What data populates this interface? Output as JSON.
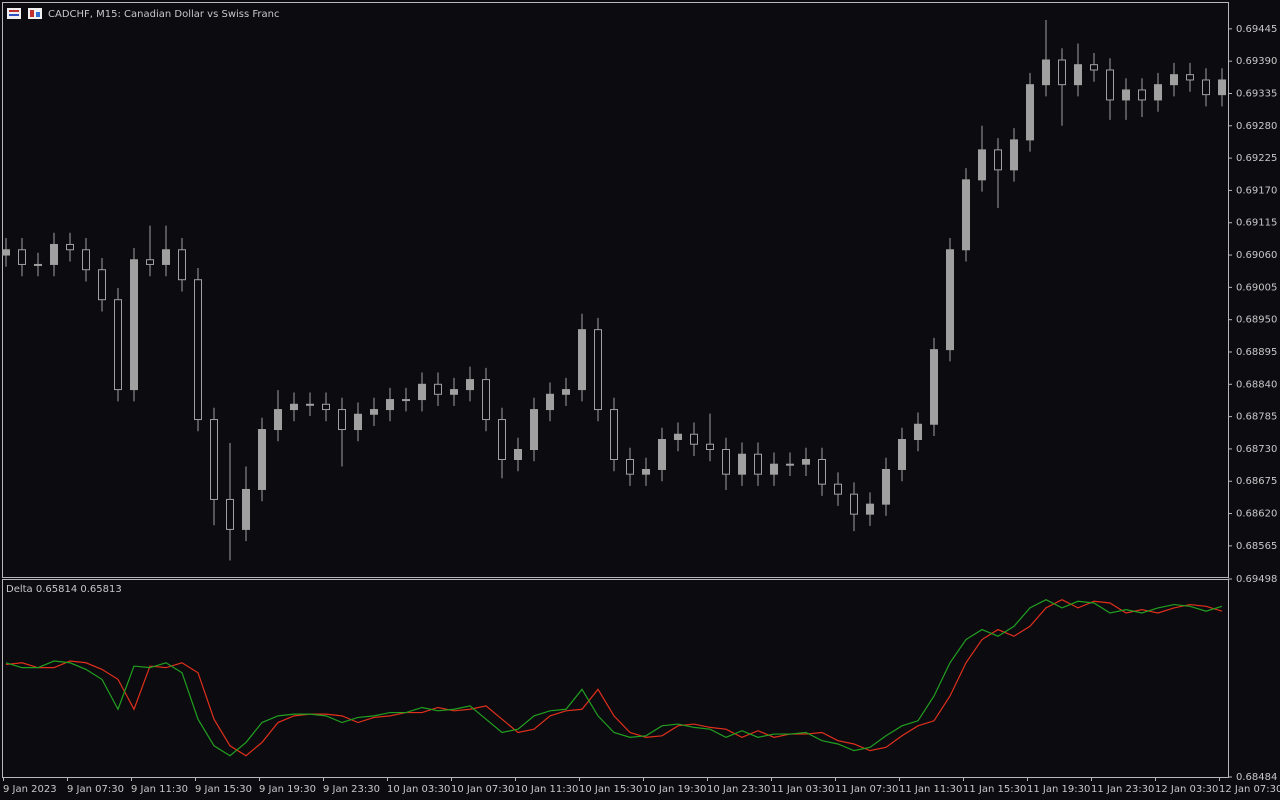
{
  "chart_data": [
    {
      "type": "candlestick",
      "title": "CADCHF, M15:  Canadian Dollar vs Swiss Franc",
      "color": "#a0a0a0",
      "open": [
        0.6906,
        0.69069,
        0.69044,
        0.69044,
        0.69078,
        0.69069,
        0.69035,
        0.68984,
        0.68831,
        0.69052,
        0.69044,
        0.69069,
        0.69018,
        0.6878,
        0.68644,
        0.68593,
        0.68661,
        0.68763,
        0.68797,
        0.68806,
        0.68806,
        0.68797,
        0.68763,
        0.68789,
        0.68797,
        0.68814,
        0.68814,
        0.6884,
        0.68823,
        0.68831,
        0.68848,
        0.6878,
        0.68712,
        0.68729,
        0.68797,
        0.68823,
        0.68831,
        0.68933,
        0.68797,
        0.68712,
        0.68687,
        0.68695,
        0.68746,
        0.68755,
        0.68738,
        0.68729,
        0.68687,
        0.68721,
        0.68687,
        0.68704,
        0.68704,
        0.68712,
        0.6867,
        0.68653,
        0.68619,
        0.68636,
        0.68695,
        0.68746,
        0.68772,
        0.68899,
        0.69069,
        0.69188,
        0.69239,
        0.69205,
        0.69256,
        0.6935,
        0.69392,
        0.6935,
        0.69384,
        0.69375,
        0.69324,
        0.69341,
        0.69324,
        0.6935,
        0.69367,
        0.69358,
        0.69333
      ],
      "high": [
        0.69089,
        0.69089,
        0.69064,
        0.69098,
        0.69098,
        0.69089,
        0.69055,
        0.69004,
        0.69072,
        0.6911,
        0.6911,
        0.69089,
        0.69038,
        0.688,
        0.6874,
        0.687,
        0.68783,
        0.6883,
        0.68826,
        0.68826,
        0.68826,
        0.68817,
        0.68809,
        0.68817,
        0.68834,
        0.68834,
        0.6886,
        0.6886,
        0.68851,
        0.6887,
        0.68868,
        0.688,
        0.68749,
        0.68817,
        0.68843,
        0.68851,
        0.6896,
        0.68953,
        0.68817,
        0.68732,
        0.68715,
        0.68766,
        0.68775,
        0.68775,
        0.6879,
        0.68749,
        0.68741,
        0.68741,
        0.68724,
        0.68724,
        0.68732,
        0.68732,
        0.6869,
        0.68673,
        0.68656,
        0.68715,
        0.68766,
        0.68792,
        0.68919,
        0.69089,
        0.69208,
        0.6928,
        0.69259,
        0.69276,
        0.6937,
        0.6946,
        0.69412,
        0.6942,
        0.69404,
        0.69395,
        0.69361,
        0.69361,
        0.6937,
        0.69387,
        0.69387,
        0.69378,
        0.69378
      ],
      "low": [
        0.6904,
        0.69024,
        0.69024,
        0.69024,
        0.69049,
        0.69015,
        0.68964,
        0.68811,
        0.68811,
        0.69024,
        0.69024,
        0.68998,
        0.6876,
        0.686,
        0.6854,
        0.68573,
        0.68641,
        0.68743,
        0.68777,
        0.68786,
        0.68777,
        0.687,
        0.68743,
        0.68769,
        0.68777,
        0.68794,
        0.68794,
        0.68803,
        0.68803,
        0.68811,
        0.6876,
        0.6868,
        0.68692,
        0.68709,
        0.68777,
        0.68803,
        0.68811,
        0.68777,
        0.68692,
        0.68667,
        0.68667,
        0.68675,
        0.68726,
        0.68718,
        0.68709,
        0.6866,
        0.68667,
        0.68667,
        0.68667,
        0.68684,
        0.68684,
        0.6865,
        0.68633,
        0.6859,
        0.68599,
        0.68616,
        0.68675,
        0.68726,
        0.68752,
        0.68879,
        0.69049,
        0.69168,
        0.6914,
        0.69185,
        0.69236,
        0.6933,
        0.6928,
        0.6933,
        0.69355,
        0.6929,
        0.6929,
        0.69295,
        0.69304,
        0.6933,
        0.69338,
        0.69313,
        0.69313
      ],
      "close": [
        0.69069,
        0.69044,
        0.69044,
        0.69078,
        0.69069,
        0.69035,
        0.68984,
        0.68831,
        0.69052,
        0.69044,
        0.69069,
        0.69018,
        0.6878,
        0.68644,
        0.68593,
        0.68661,
        0.68763,
        0.68797,
        0.68806,
        0.68806,
        0.68797,
        0.68763,
        0.68789,
        0.68797,
        0.68814,
        0.68814,
        0.6884,
        0.68823,
        0.68831,
        0.68848,
        0.6878,
        0.68712,
        0.68729,
        0.68797,
        0.68823,
        0.68831,
        0.68933,
        0.68797,
        0.68712,
        0.68687,
        0.68695,
        0.68746,
        0.68755,
        0.68738,
        0.68729,
        0.68687,
        0.68721,
        0.68687,
        0.68704,
        0.68704,
        0.68712,
        0.6867,
        0.68653,
        0.68619,
        0.68636,
        0.68695,
        0.68746,
        0.68772,
        0.68899,
        0.69069,
        0.69188,
        0.69239,
        0.69205,
        0.69256,
        0.6935,
        0.69392,
        0.6935,
        0.69384,
        0.69375,
        0.69324,
        0.69341,
        0.69324,
        0.6935,
        0.69367,
        0.69358,
        0.69333,
        0.69358
      ],
      "ylim": [
        0.68512,
        0.69489
      ],
      "yticks": [
        0.69445,
        {
          "value": 0.6939,
          "label": "0.69390"
        },
        0.69335,
        {
          "value": 0.6928,
          "label": "0.69280"
        },
        0.69225,
        {
          "value": 0.6917,
          "label": "0.69170"
        },
        0.69115,
        {
          "value": 0.6906,
          "label": "0.69060"
        },
        0.69005,
        {
          "value": 0.6895,
          "label": "0.68950"
        },
        0.68895,
        {
          "value": 0.6884,
          "label": "0.68840"
        },
        0.68785,
        {
          "value": 0.6873,
          "label": "0.68730"
        },
        0.68675,
        {
          "value": 0.6862,
          "label": "0.68620"
        },
        0.68565
      ]
    },
    {
      "type": "line",
      "title": "Delta 0.65814 0.65813",
      "series": [
        {
          "color": "#e0301c",
          "values": [
            0.6906,
            0.69069,
            0.69044,
            0.69044,
            0.69078,
            0.69069,
            0.69035,
            0.68984,
            0.68831,
            0.69052,
            0.69044,
            0.69069,
            0.69018,
            0.6878,
            0.68644,
            0.68593,
            0.68661,
            0.68763,
            0.68797,
            0.68806,
            0.68806,
            0.68797,
            0.68763,
            0.68789,
            0.68797,
            0.68814,
            0.68814,
            0.6884,
            0.68823,
            0.68831,
            0.68848,
            0.6878,
            0.68712,
            0.68729,
            0.68797,
            0.68823,
            0.68831,
            0.68933,
            0.68797,
            0.68712,
            0.68687,
            0.68695,
            0.68746,
            0.68755,
            0.68738,
            0.68729,
            0.68687,
            0.68721,
            0.68687,
            0.68704,
            0.68704,
            0.68712,
            0.6867,
            0.68653,
            0.68619,
            0.68636,
            0.68695,
            0.68746,
            0.68772,
            0.68899,
            0.69069,
            0.69188,
            0.69239,
            0.69205,
            0.69256,
            0.6935,
            0.69392,
            0.6935,
            0.69384,
            0.69375,
            0.69324,
            0.69341,
            0.69324,
            0.6935,
            0.69367,
            0.69358,
            0.69333
          ]
        },
        {
          "color": "#22a020",
          "values": [
            0.69069,
            0.69044,
            0.69044,
            0.69078,
            0.69069,
            0.69035,
            0.68984,
            0.68831,
            0.69052,
            0.69044,
            0.69069,
            0.69018,
            0.6878,
            0.68644,
            0.68593,
            0.68661,
            0.68763,
            0.68797,
            0.68806,
            0.68806,
            0.68797,
            0.68763,
            0.68789,
            0.68797,
            0.68814,
            0.68814,
            0.6884,
            0.68823,
            0.68831,
            0.68848,
            0.6878,
            0.68712,
            0.68729,
            0.68797,
            0.68823,
            0.68831,
            0.68933,
            0.68797,
            0.68712,
            0.68687,
            0.68695,
            0.68746,
            0.68755,
            0.68738,
            0.68729,
            0.68687,
            0.68721,
            0.68687,
            0.68704,
            0.68704,
            0.68712,
            0.6867,
            0.68653,
            0.68619,
            0.68636,
            0.68695,
            0.68746,
            0.68772,
            0.68899,
            0.69069,
            0.69188,
            0.69239,
            0.69205,
            0.69256,
            0.6935,
            0.69392,
            0.6935,
            0.69384,
            0.69375,
            0.69324,
            0.69341,
            0.69324,
            0.6935,
            0.69367,
            0.69358,
            0.69333,
            0.69358
          ]
        }
      ],
      "ylim": [
        0.68484,
        0.69498
      ],
      "yticks": [
        0.69498,
        0.68484
      ],
      "x_labels": [
        "9 Jan 2023",
        "9 Jan 07:30",
        "9 Jan 11:30",
        "9 Jan 15:30",
        "9 Jan 19:30",
        "9 Jan 23:30",
        "10 Jan 03:30",
        "10 Jan 07:30",
        "10 Jan 11:30",
        "10 Jan 15:30",
        "10 Jan 19:30",
        "10 Jan 23:30",
        "11 Jan 03:30",
        "11 Jan 07:30",
        "11 Jan 11:30",
        "11 Jan 15:30",
        "11 Jan 19:30",
        "11 Jan 23:30",
        "12 Jan 03:30",
        "12 Jan 07:30"
      ]
    }
  ]
}
